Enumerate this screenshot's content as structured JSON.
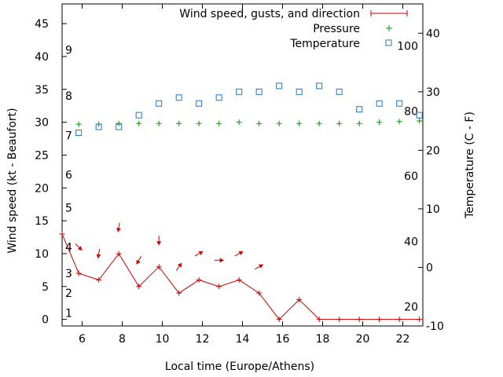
{
  "chart_data": {
    "type": "line",
    "xlabel": "Local time (Europe/Athens)",
    "ylabel": "Wind speed (kt - Beaufort)",
    "y2label": "Temperature (C - F)",
    "xlim": [
      5,
      23
    ],
    "ylim": [
      -1,
      48
    ],
    "y2lim": [
      -10,
      45
    ],
    "x_ticks": [
      6,
      8,
      10,
      12,
      14,
      16,
      18,
      20,
      22
    ],
    "y_ticks": [
      0,
      5,
      10,
      15,
      20,
      25,
      30,
      35,
      40,
      45
    ],
    "y2_ticks": [
      -10,
      0,
      10,
      20,
      30,
      40
    ],
    "beaufort_labels": [
      {
        "label": "1",
        "kt": 1
      },
      {
        "label": "2",
        "kt": 4
      },
      {
        "label": "3",
        "kt": 7
      },
      {
        "label": "4",
        "kt": 11
      },
      {
        "label": "5",
        "kt": 17
      },
      {
        "label": "6",
        "kt": 22
      },
      {
        "label": "7",
        "kt": 28
      },
      {
        "label": "8",
        "kt": 34
      },
      {
        "label": "9",
        "kt": 41
      }
    ],
    "fahrenheit_labels": [
      {
        "label": "20",
        "c": -6.7
      },
      {
        "label": "40",
        "c": 4.4
      },
      {
        "label": "60",
        "c": 15.6
      },
      {
        "label": "80",
        "c": 26.7
      },
      {
        "label": "100",
        "c": 37.8
      }
    ],
    "series": [
      {
        "name": "Wind speed, gusts, and direction",
        "color": "#cc0000",
        "x": [
          5,
          5.83,
          6.83,
          7.83,
          8.83,
          9.83,
          10.83,
          11.83,
          12.83,
          13.83,
          14.83,
          15.83,
          16.83,
          17.83,
          18.83,
          19.83,
          20.83,
          21.83,
          22.83
        ],
        "values": [
          13,
          7,
          6,
          10,
          5,
          8,
          4,
          6,
          5,
          6,
          4,
          0,
          3,
          0,
          0,
          0,
          0,
          0,
          0
        ],
        "direction_arrows": [
          {
            "x": 5.83,
            "kt": 11,
            "angle": 135
          },
          {
            "x": 6.83,
            "kt": 10,
            "angle": 190
          },
          {
            "x": 7.83,
            "kt": 14,
            "angle": 190
          },
          {
            "x": 8.83,
            "kt": 9,
            "angle": 210
          },
          {
            "x": 9.83,
            "kt": 12,
            "angle": 180
          },
          {
            "x": 10.83,
            "kt": 8,
            "angle": 35
          },
          {
            "x": 11.83,
            "kt": 10,
            "angle": 60
          },
          {
            "x": 12.83,
            "kt": 9,
            "angle": 90
          },
          {
            "x": 13.83,
            "kt": 10,
            "angle": 60
          },
          {
            "x": 14.83,
            "kt": 8,
            "angle": 60
          }
        ]
      },
      {
        "name": "Pressure",
        "color": "#009900",
        "axis": "left",
        "x": [
          5.83,
          6.83,
          7.83,
          8.83,
          9.83,
          10.83,
          11.83,
          12.83,
          13.83,
          14.83,
          15.83,
          16.83,
          17.83,
          18.83,
          19.83,
          20.83,
          21.83,
          22.83
        ],
        "values": [
          29.7,
          29.7,
          29.8,
          29.8,
          29.8,
          29.8,
          29.8,
          29.8,
          30.0,
          29.8,
          29.8,
          29.8,
          29.8,
          29.8,
          29.8,
          30.0,
          30.1,
          30.2
        ]
      },
      {
        "name": "Temperature",
        "color": "#1f77c8",
        "axis": "right",
        "x": [
          5.83,
          6.83,
          7.83,
          8.83,
          9.83,
          10.83,
          11.83,
          12.83,
          13.83,
          14.83,
          15.83,
          16.83,
          17.83,
          18.83,
          19.83,
          20.83,
          21.83,
          22.83
        ],
        "values": [
          23,
          24,
          24,
          26,
          28,
          29,
          28,
          29,
          30,
          30,
          31,
          30,
          31,
          30,
          27,
          28,
          28,
          26
        ]
      }
    ],
    "legend_position": "top-right"
  }
}
